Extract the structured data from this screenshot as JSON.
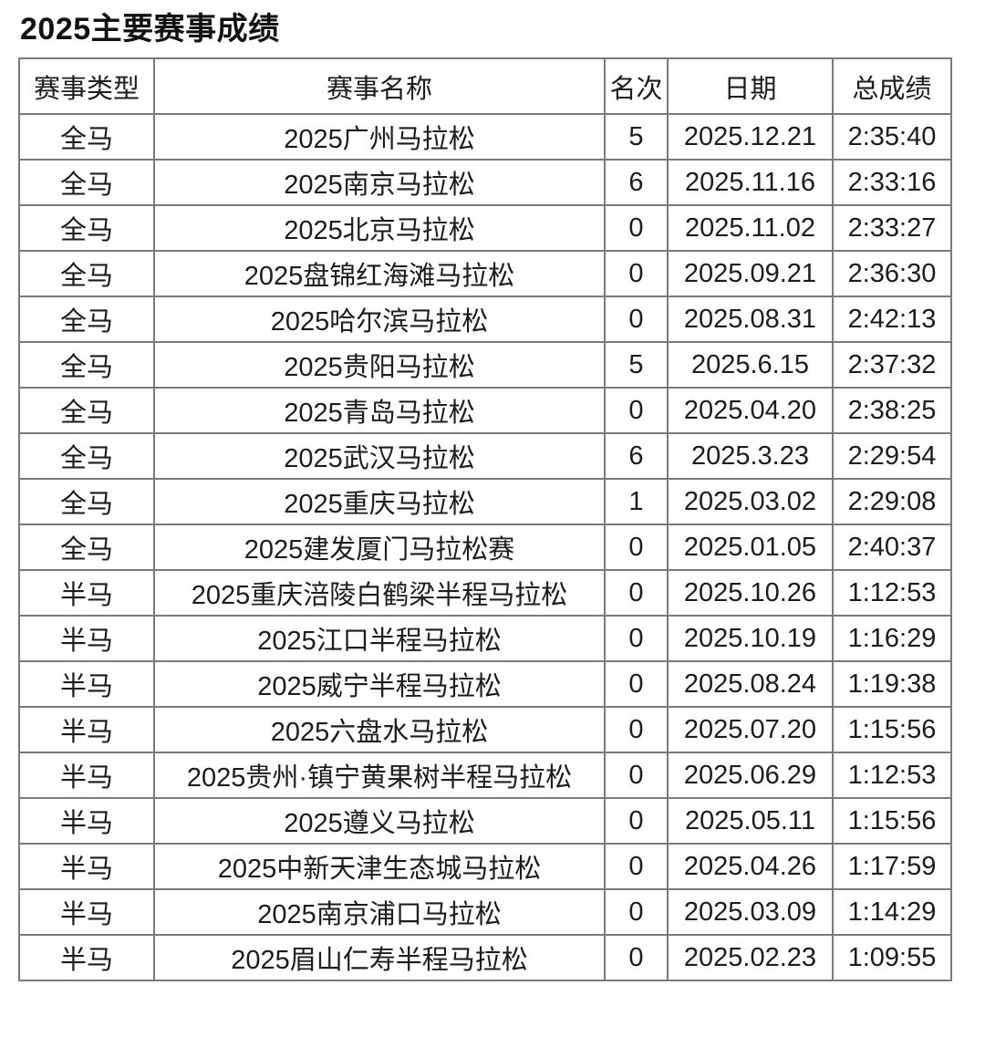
{
  "title": "2025主要赛事成绩",
  "colors": {
    "background": "#ffffff",
    "border": "#7a7a7a",
    "text": "#1c1c1c"
  },
  "chart_data": {
    "type": "table",
    "title": "2025主要赛事成绩",
    "columns": [
      "赛事类型",
      "赛事名称",
      "名次",
      "日期",
      "总成绩"
    ],
    "rows": [
      [
        "全马",
        "2025广州马拉松",
        "5",
        "2025.12.21",
        "2:35:40"
      ],
      [
        "全马",
        "2025南京马拉松",
        "6",
        "2025.11.16",
        "2:33:16"
      ],
      [
        "全马",
        "2025北京马拉松",
        "0",
        "2025.11.02",
        "2:33:27"
      ],
      [
        "全马",
        "2025盘锦红海滩马拉松",
        "0",
        "2025.09.21",
        "2:36:30"
      ],
      [
        "全马",
        "2025哈尔滨马拉松",
        "0",
        "2025.08.31",
        "2:42:13"
      ],
      [
        "全马",
        "2025贵阳马拉松",
        "5",
        "2025.6.15",
        "2:37:32"
      ],
      [
        "全马",
        "2025青岛马拉松",
        "0",
        "2025.04.20",
        "2:38:25"
      ],
      [
        "全马",
        "2025武汉马拉松",
        "6",
        "2025.3.23",
        "2:29:54"
      ],
      [
        "全马",
        "2025重庆马拉松",
        "1",
        "2025.03.02",
        "2:29:08"
      ],
      [
        "全马",
        "2025建发厦门马拉松赛",
        "0",
        "2025.01.05",
        "2:40:37"
      ],
      [
        "半马",
        "2025重庆涪陵白鹤梁半程马拉松",
        "0",
        "2025.10.26",
        "1:12:53"
      ],
      [
        "半马",
        "2025江口半程马拉松",
        "0",
        "2025.10.19",
        "1:16:29"
      ],
      [
        "半马",
        "2025威宁半程马拉松",
        "0",
        "2025.08.24",
        "1:19:38"
      ],
      [
        "半马",
        "2025六盘水马拉松",
        "0",
        "2025.07.20",
        "1:15:56"
      ],
      [
        "半马",
        "2025贵州·镇宁黄果树半程马拉松",
        "0",
        "2025.06.29",
        "1:12:53"
      ],
      [
        "半马",
        "2025遵义马拉松",
        "0",
        "2025.05.11",
        "1:15:56"
      ],
      [
        "半马",
        "2025中新天津生态城马拉松",
        "0",
        "2025.04.26",
        "1:17:59"
      ],
      [
        "半马",
        "2025南京浦口马拉松",
        "0",
        "2025.03.09",
        "1:14:29"
      ],
      [
        "半马",
        "2025眉山仁寿半程马拉松",
        "0",
        "2025.02.23",
        "1:09:55"
      ]
    ]
  }
}
